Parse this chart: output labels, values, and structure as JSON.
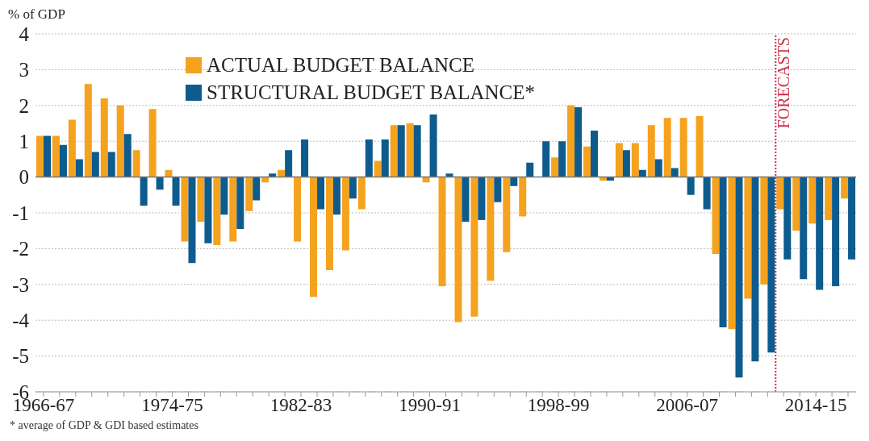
{
  "chart_data": {
    "type": "bar",
    "ylabel": "% of GDP",
    "categories": [
      "1966-67",
      null,
      null,
      null,
      null,
      null,
      null,
      null,
      "1974-75",
      null,
      null,
      null,
      null,
      null,
      null,
      null,
      "1982-83",
      null,
      null,
      null,
      null,
      null,
      null,
      null,
      "1990-91",
      null,
      null,
      null,
      null,
      null,
      null,
      null,
      "1998-99",
      null,
      null,
      null,
      null,
      null,
      null,
      null,
      "2006-07",
      null,
      null,
      null,
      null,
      null,
      null,
      null,
      "2014-15",
      null,
      null
    ],
    "ylim": [
      -6,
      4
    ],
    "yticks": [
      -6,
      -5,
      -4,
      -3,
      -2,
      -1,
      0,
      1,
      2,
      3,
      4
    ],
    "series": [
      {
        "name": "ACTUAL BUDGET BALANCE",
        "color": "#f5a21f",
        "values": [
          1.15,
          1.15,
          1.6,
          2.6,
          2.2,
          2.0,
          0.75,
          1.9,
          0.2,
          -1.8,
          -1.25,
          -1.9,
          -1.8,
          -0.95,
          -0.15,
          0.2,
          -1.8,
          -3.35,
          -2.6,
          -2.05,
          -0.9,
          0.45,
          1.45,
          1.5,
          -0.15,
          -3.05,
          -4.05,
          -3.9,
          -2.9,
          -2.1,
          -1.1,
          null,
          0.55,
          2.0,
          0.85,
          -0.1,
          0.95,
          0.95,
          1.45,
          1.65,
          1.65,
          1.7,
          -2.15,
          -4.25,
          -3.4,
          -3.0,
          -0.9,
          -1.5,
          -1.3,
          -1.2,
          -0.6
        ]
      },
      {
        "name": "STRUCTURAL BUDGET BALANCE*",
        "color": "#0e5b8e",
        "values": [
          1.15,
          0.9,
          0.5,
          0.7,
          0.7,
          1.2,
          -0.8,
          -0.35,
          -0.8,
          -2.4,
          -1.85,
          -1.05,
          -1.45,
          -0.65,
          0.1,
          0.75,
          1.05,
          -0.9,
          -1.05,
          -0.6,
          1.05,
          1.05,
          1.45,
          1.45,
          1.75,
          0.1,
          -1.25,
          -1.2,
          -0.7,
          -0.25,
          0.4,
          1.0,
          1.0,
          1.95,
          1.3,
          -0.1,
          0.75,
          0.2,
          0.5,
          0.25,
          -0.5,
          -0.9,
          -4.2,
          -5.6,
          -5.15,
          -4.9,
          -2.3,
          -2.85,
          -3.15,
          -3.05,
          -2.3
        ]
      }
    ],
    "ref_lines": [
      {
        "axis": "y",
        "value": 0,
        "color": "#777777",
        "line_style": "solid"
      }
    ],
    "grid": "y",
    "legend": "top left",
    "annotations": [
      "* average of GDP & GDI based estimates",
      "FORECASTS"
    ]
  }
}
